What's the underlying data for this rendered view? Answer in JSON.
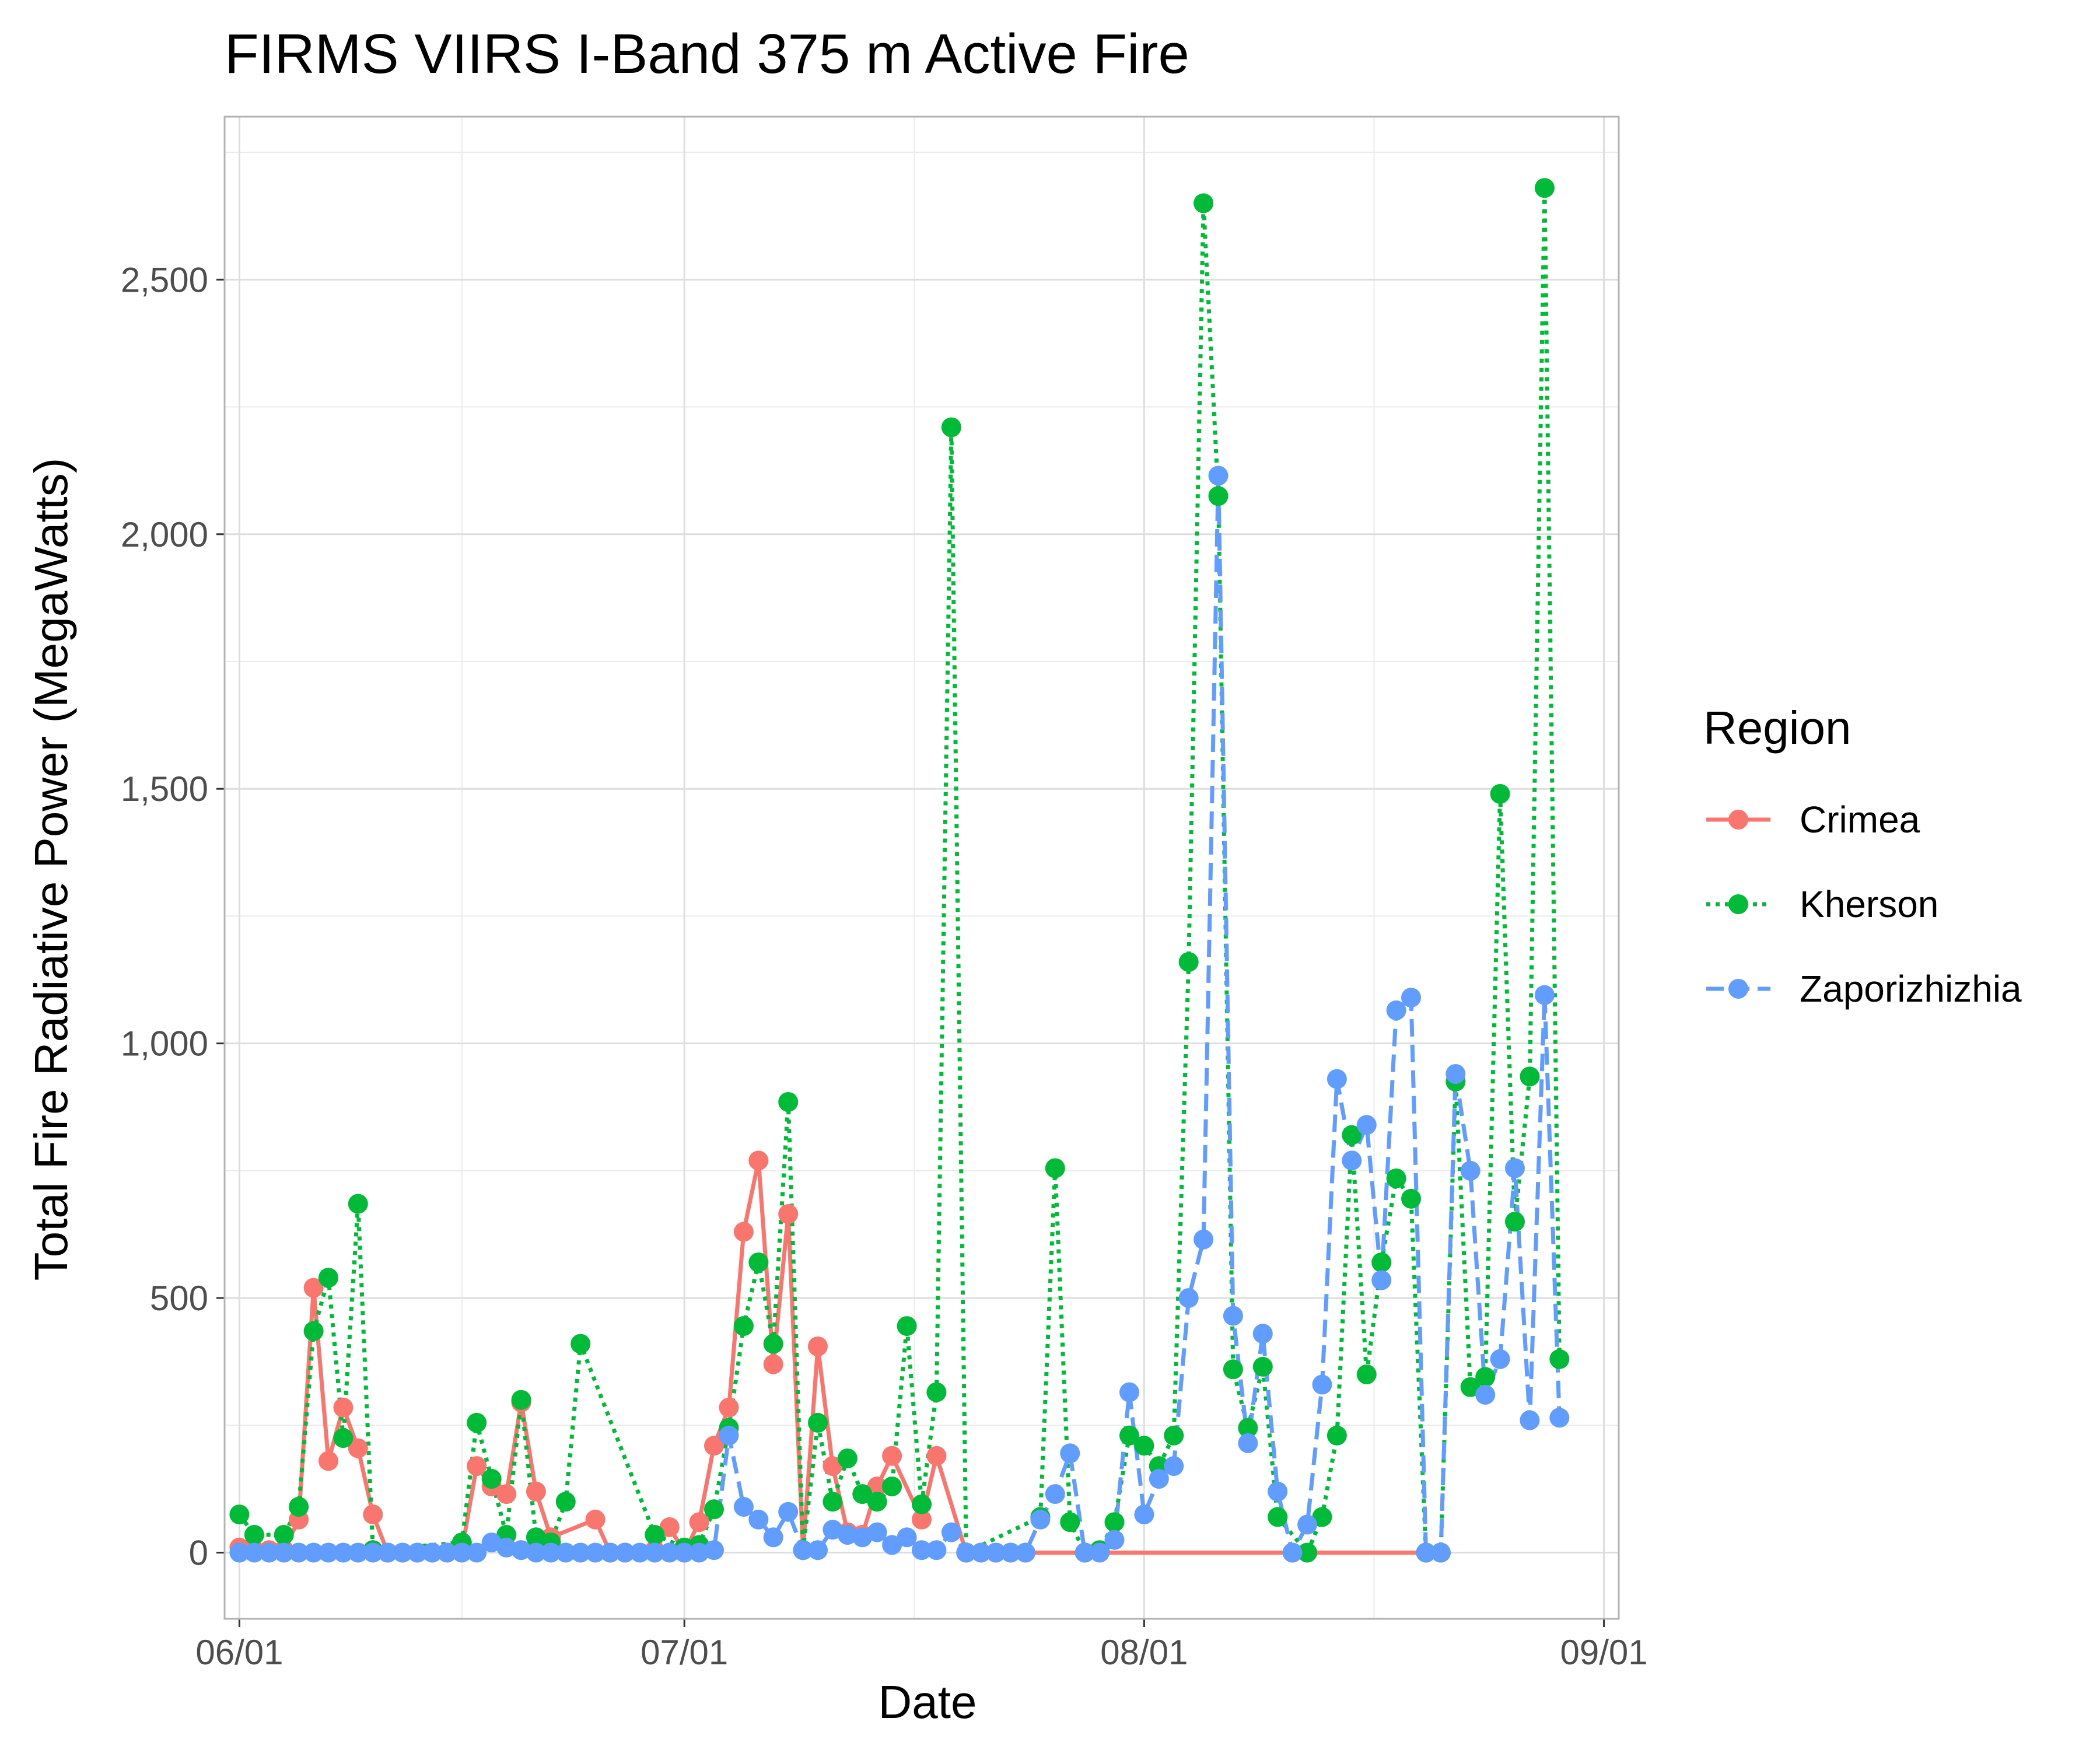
{
  "chart_data": {
    "type": "line",
    "title": "FIRMS VIIRS I-Band 375 m Active Fire",
    "xlabel": "Date",
    "ylabel": "Total Fire Radiative Power (MegaWatts)",
    "x_axis": {
      "kind": "date",
      "min": "2023-05-31",
      "max": "2023-09-02",
      "ticks": [
        {
          "date": "2023-06-01",
          "label": "06/01"
        },
        {
          "date": "2023-07-01",
          "label": "07/01"
        },
        {
          "date": "2023-08-01",
          "label": "08/01"
        },
        {
          "date": "2023-09-01",
          "label": "09/01"
        }
      ]
    },
    "y_axis": {
      "min": -130,
      "max": 2820,
      "ticks": [
        {
          "value": 0,
          "label": "0"
        },
        {
          "value": 500,
          "label": "500"
        },
        {
          "value": 1000,
          "label": "1,000"
        },
        {
          "value": 1500,
          "label": "1,500"
        },
        {
          "value": 2000,
          "label": "2,000"
        },
        {
          "value": 2500,
          "label": "2,500"
        }
      ],
      "minor_ticks": [
        250,
        750,
        1250,
        1750,
        2250,
        2750
      ]
    },
    "grid": true,
    "legend": {
      "title": "Region",
      "position": "right"
    },
    "series": [
      {
        "name": "Crimea",
        "color": "#F8766D",
        "line_style": "solid",
        "points": [
          [
            "2023-06-01",
            10
          ],
          [
            "2023-06-02",
            5
          ],
          [
            "2023-06-03",
            5
          ],
          [
            "2023-06-04",
            5
          ],
          [
            "2023-06-05",
            65
          ],
          [
            "2023-06-06",
            520
          ],
          [
            "2023-06-07",
            180
          ],
          [
            "2023-06-08",
            285
          ],
          [
            "2023-06-09",
            205
          ],
          [
            "2023-06-10",
            75
          ],
          [
            "2023-06-11",
            0
          ],
          [
            "2023-06-12",
            0
          ],
          [
            "2023-06-13",
            0
          ],
          [
            "2023-06-14",
            0
          ],
          [
            "2023-06-15",
            0
          ],
          [
            "2023-06-16",
            5
          ],
          [
            "2023-06-17",
            170
          ],
          [
            "2023-06-18",
            130
          ],
          [
            "2023-06-19",
            115
          ],
          [
            "2023-06-20",
            295
          ],
          [
            "2023-06-21",
            120
          ],
          [
            "2023-06-22",
            30
          ],
          [
            "2023-06-25",
            65
          ],
          [
            "2023-06-26",
            0
          ],
          [
            "2023-06-27",
            0
          ],
          [
            "2023-06-29",
            5
          ],
          [
            "2023-06-30",
            50
          ],
          [
            "2023-07-01",
            0
          ],
          [
            "2023-07-02",
            60
          ],
          [
            "2023-07-03",
            210
          ],
          [
            "2023-07-04",
            285
          ],
          [
            "2023-07-05",
            630
          ],
          [
            "2023-07-06",
            770
          ],
          [
            "2023-07-07",
            370
          ],
          [
            "2023-07-08",
            665
          ],
          [
            "2023-07-09",
            5
          ],
          [
            "2023-07-10",
            405
          ],
          [
            "2023-07-11",
            170
          ],
          [
            "2023-07-12",
            40
          ],
          [
            "2023-07-13",
            35
          ],
          [
            "2023-07-14",
            130
          ],
          [
            "2023-07-15",
            190
          ],
          [
            "2023-07-17",
            65
          ],
          [
            "2023-07-18",
            190
          ],
          [
            "2023-07-20",
            0
          ],
          [
            "2023-07-21",
            0
          ],
          [
            "2023-07-22",
            0
          ],
          [
            "2023-07-23",
            0
          ],
          [
            "2023-07-24",
            0
          ],
          [
            "2023-07-28",
            0
          ],
          [
            "2023-08-11",
            0
          ],
          [
            "2023-08-20",
            0
          ],
          [
            "2023-08-21",
            0
          ]
        ]
      },
      {
        "name": "Kherson",
        "color": "#00BA38",
        "line_style": "dotted",
        "points": [
          [
            "2023-06-01",
            75
          ],
          [
            "2023-06-02",
            35
          ],
          [
            "2023-06-04",
            35
          ],
          [
            "2023-06-05",
            90
          ],
          [
            "2023-06-06",
            435
          ],
          [
            "2023-06-07",
            540
          ],
          [
            "2023-06-08",
            225
          ],
          [
            "2023-06-09",
            685
          ],
          [
            "2023-06-10",
            5
          ],
          [
            "2023-06-16",
            20
          ],
          [
            "2023-06-17",
            255
          ],
          [
            "2023-06-18",
            145
          ],
          [
            "2023-06-19",
            35
          ],
          [
            "2023-06-20",
            300
          ],
          [
            "2023-06-21",
            30
          ],
          [
            "2023-06-22",
            20
          ],
          [
            "2023-06-23",
            100
          ],
          [
            "2023-06-24",
            410
          ],
          [
            "2023-06-29",
            35
          ],
          [
            "2023-07-01",
            10
          ],
          [
            "2023-07-02",
            15
          ],
          [
            "2023-07-03",
            85
          ],
          [
            "2023-07-04",
            245
          ],
          [
            "2023-07-05",
            445
          ],
          [
            "2023-07-06",
            570
          ],
          [
            "2023-07-07",
            410
          ],
          [
            "2023-07-08",
            885
          ],
          [
            "2023-07-09",
            5
          ],
          [
            "2023-07-10",
            255
          ],
          [
            "2023-07-11",
            100
          ],
          [
            "2023-07-12",
            185
          ],
          [
            "2023-07-13",
            115
          ],
          [
            "2023-07-14",
            100
          ],
          [
            "2023-07-15",
            130
          ],
          [
            "2023-07-16",
            445
          ],
          [
            "2023-07-17",
            95
          ],
          [
            "2023-07-18",
            315
          ],
          [
            "2023-07-19",
            2210
          ],
          [
            "2023-07-20",
            0
          ],
          [
            "2023-07-25",
            70
          ],
          [
            "2023-07-26",
            755
          ],
          [
            "2023-07-27",
            60
          ],
          [
            "2023-07-28",
            0
          ],
          [
            "2023-07-29",
            5
          ],
          [
            "2023-07-30",
            60
          ],
          [
            "2023-07-31",
            230
          ],
          [
            "2023-08-01",
            210
          ],
          [
            "2023-08-02",
            170
          ],
          [
            "2023-08-03",
            230
          ],
          [
            "2023-08-04",
            1160
          ],
          [
            "2023-08-05",
            2650
          ],
          [
            "2023-08-06",
            2075
          ],
          [
            "2023-08-07",
            360
          ],
          [
            "2023-08-08",
            245
          ],
          [
            "2023-08-09",
            365
          ],
          [
            "2023-08-10",
            70
          ],
          [
            "2023-08-12",
            0
          ],
          [
            "2023-08-13",
            70
          ],
          [
            "2023-08-14",
            230
          ],
          [
            "2023-08-15",
            820
          ],
          [
            "2023-08-16",
            350
          ],
          [
            "2023-08-17",
            570
          ],
          [
            "2023-08-18",
            735
          ],
          [
            "2023-08-19",
            695
          ],
          [
            "2023-08-20",
            0
          ],
          [
            "2023-08-21",
            0
          ],
          [
            "2023-08-22",
            925
          ],
          [
            "2023-08-23",
            325
          ],
          [
            "2023-08-24",
            345
          ],
          [
            "2023-08-25",
            1490
          ],
          [
            "2023-08-26",
            650
          ],
          [
            "2023-08-27",
            935
          ],
          [
            "2023-08-28",
            2680
          ],
          [
            "2023-08-29",
            380
          ]
        ]
      },
      {
        "name": "Zaporizhizhia",
        "color": "#619CFF",
        "line_style": "dashed",
        "points": [
          [
            "2023-06-01",
            0
          ],
          [
            "2023-06-02",
            0
          ],
          [
            "2023-06-03",
            0
          ],
          [
            "2023-06-04",
            0
          ],
          [
            "2023-06-05",
            0
          ],
          [
            "2023-06-06",
            0
          ],
          [
            "2023-06-07",
            0
          ],
          [
            "2023-06-08",
            0
          ],
          [
            "2023-06-09",
            0
          ],
          [
            "2023-06-10",
            0
          ],
          [
            "2023-06-11",
            0
          ],
          [
            "2023-06-12",
            0
          ],
          [
            "2023-06-13",
            0
          ],
          [
            "2023-06-14",
            0
          ],
          [
            "2023-06-15",
            0
          ],
          [
            "2023-06-16",
            0
          ],
          [
            "2023-06-17",
            0
          ],
          [
            "2023-06-18",
            20
          ],
          [
            "2023-06-19",
            10
          ],
          [
            "2023-06-20",
            5
          ],
          [
            "2023-06-21",
            0
          ],
          [
            "2023-06-22",
            0
          ],
          [
            "2023-06-23",
            0
          ],
          [
            "2023-06-24",
            0
          ],
          [
            "2023-06-25",
            0
          ],
          [
            "2023-06-26",
            0
          ],
          [
            "2023-06-27",
            0
          ],
          [
            "2023-06-28",
            0
          ],
          [
            "2023-06-29",
            0
          ],
          [
            "2023-06-30",
            0
          ],
          [
            "2023-07-01",
            0
          ],
          [
            "2023-07-02",
            0
          ],
          [
            "2023-07-03",
            5
          ],
          [
            "2023-07-04",
            230
          ],
          [
            "2023-07-05",
            90
          ],
          [
            "2023-07-06",
            65
          ],
          [
            "2023-07-07",
            30
          ],
          [
            "2023-07-08",
            80
          ],
          [
            "2023-07-09",
            5
          ],
          [
            "2023-07-10",
            5
          ],
          [
            "2023-07-11",
            45
          ],
          [
            "2023-07-12",
            35
          ],
          [
            "2023-07-13",
            30
          ],
          [
            "2023-07-14",
            40
          ],
          [
            "2023-07-15",
            15
          ],
          [
            "2023-07-16",
            30
          ],
          [
            "2023-07-17",
            5
          ],
          [
            "2023-07-18",
            5
          ],
          [
            "2023-07-19",
            40
          ],
          [
            "2023-07-20",
            0
          ],
          [
            "2023-07-21",
            0
          ],
          [
            "2023-07-22",
            0
          ],
          [
            "2023-07-23",
            0
          ],
          [
            "2023-07-24",
            0
          ],
          [
            "2023-07-25",
            65
          ],
          [
            "2023-07-26",
            115
          ],
          [
            "2023-07-27",
            195
          ],
          [
            "2023-07-28",
            0
          ],
          [
            "2023-07-29",
            0
          ],
          [
            "2023-07-30",
            25
          ],
          [
            "2023-07-31",
            315
          ],
          [
            "2023-08-01",
            75
          ],
          [
            "2023-08-02",
            145
          ],
          [
            "2023-08-03",
            170
          ],
          [
            "2023-08-04",
            500
          ],
          [
            "2023-08-05",
            615
          ],
          [
            "2023-08-06",
            2115
          ],
          [
            "2023-08-07",
            465
          ],
          [
            "2023-08-08",
            215
          ],
          [
            "2023-08-09",
            430
          ],
          [
            "2023-08-10",
            120
          ],
          [
            "2023-08-11",
            0
          ],
          [
            "2023-08-12",
            55
          ],
          [
            "2023-08-13",
            330
          ],
          [
            "2023-08-14",
            930
          ],
          [
            "2023-08-15",
            770
          ],
          [
            "2023-08-16",
            840
          ],
          [
            "2023-08-17",
            535
          ],
          [
            "2023-08-18",
            1065
          ],
          [
            "2023-08-19",
            1090
          ],
          [
            "2023-08-20",
            0
          ],
          [
            "2023-08-21",
            0
          ],
          [
            "2023-08-22",
            940
          ],
          [
            "2023-08-23",
            750
          ],
          [
            "2023-08-24",
            310
          ],
          [
            "2023-08-25",
            380
          ],
          [
            "2023-08-26",
            755
          ],
          [
            "2023-08-27",
            260
          ],
          [
            "2023-08-28",
            1095
          ],
          [
            "2023-08-29",
            265
          ]
        ]
      }
    ]
  }
}
